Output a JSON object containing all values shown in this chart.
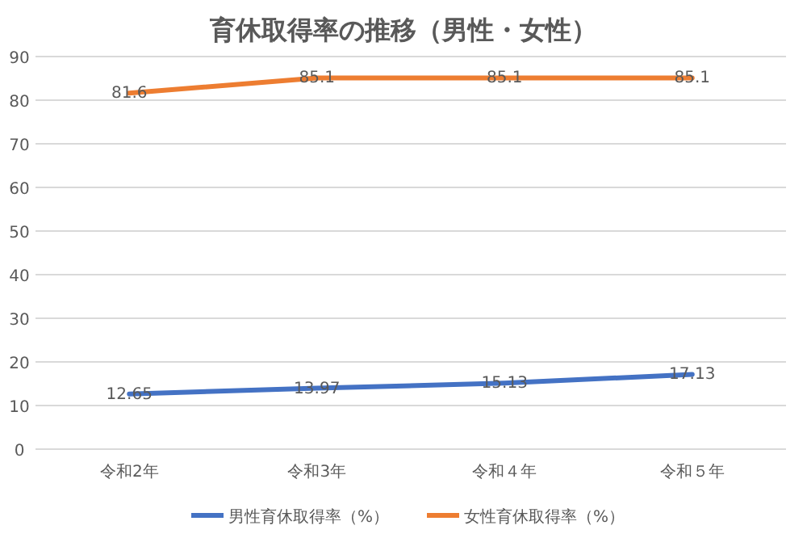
{
  "chart_data": {
    "type": "line",
    "title": "育休取得率の推移（男性・女性）",
    "categories": [
      "令和2年",
      "令和3年",
      "令和４年",
      "令和５年"
    ],
    "series": [
      {
        "name": "男性育休取得率（%）",
        "color": "#4472c4",
        "values": [
          12.65,
          13.97,
          15.13,
          17.13
        ]
      },
      {
        "name": "女性育休取得率（%）",
        "color": "#ed7d31",
        "values": [
          81.6,
          85.1,
          85.1,
          85.1
        ]
      }
    ],
    "ylim": [
      0,
      90
    ],
    "yticks": [
      0,
      10,
      20,
      30,
      40,
      50,
      60,
      70,
      80,
      90
    ],
    "grid": "y",
    "legend": "bottom",
    "data_labels": true,
    "marker": "none",
    "line_style": "solid"
  }
}
